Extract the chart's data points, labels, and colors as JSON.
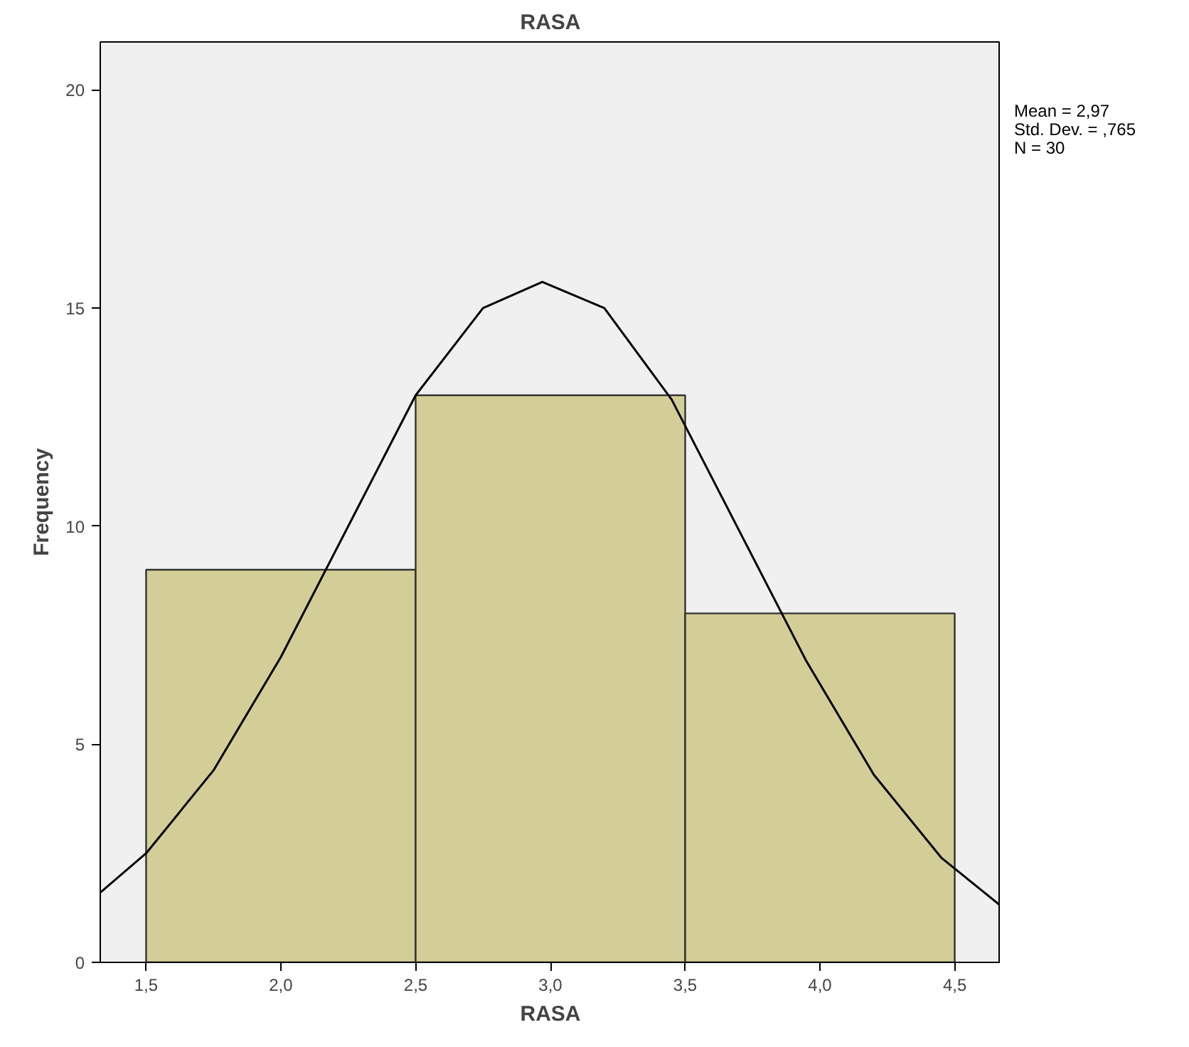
{
  "chart_data": {
    "type": "histogram",
    "title": "RASA",
    "xlabel": "RASA",
    "ylabel": "Frequency",
    "bins": [
      1.5,
      2.5,
      3.5,
      4.5
    ],
    "values": [
      9,
      13,
      8
    ],
    "color": "#d3ce97",
    "series": [
      {
        "type": "line",
        "color": "#000000",
        "x": [
          1.33,
          1.5,
          1.75,
          2.0,
          2.25,
          2.5,
          2.75,
          2.97,
          3.2,
          3.45,
          3.7,
          3.95,
          4.2,
          4.45,
          4.67
        ],
        "values": [
          1.6,
          2.5,
          4.4,
          7.0,
          10.0,
          13.0,
          15.0,
          15.6,
          15.0,
          12.9,
          9.9,
          6.9,
          4.3,
          2.4,
          1.3
        ]
      }
    ],
    "xlim": [
      1.33,
      4.67
    ],
    "ylim": [
      0,
      21.1
    ],
    "xticks": [
      {
        "value": 1.5,
        "label": "1,5"
      },
      {
        "value": 2.0,
        "label": "2,0"
      },
      {
        "value": 2.5,
        "label": "2,5"
      },
      {
        "value": 3.0,
        "label": "3,0"
      },
      {
        "value": 3.5,
        "label": "3,5"
      },
      {
        "value": 4.0,
        "label": "4,0"
      },
      {
        "value": 4.5,
        "label": "4,5"
      }
    ],
    "yticks": [
      0,
      5,
      10,
      15,
      20
    ],
    "grid": false,
    "annotations": [
      "Mean = 2,97",
      "Std. Dev. = ,765",
      "N = 30"
    ]
  }
}
